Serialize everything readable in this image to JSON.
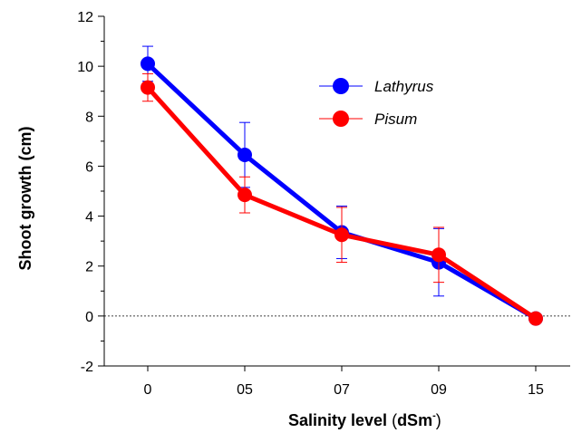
{
  "chart_data": {
    "type": "line",
    "categories": [
      "0",
      "05",
      "07",
      "09",
      "15"
    ],
    "ylabel": "Shoot growth (cm)",
    "xlabel": {
      "prefix": "Salinity level ",
      "paren_open": "(",
      "unit": "dSm",
      "superscript": "-",
      "paren_close": ")"
    },
    "ylim": [
      -2,
      12
    ],
    "yticks": [
      "-2",
      "0",
      "2",
      "4",
      "6",
      "8",
      "10",
      "12"
    ],
    "reference_line_y": 0,
    "grid": false,
    "legend_position": "top-center",
    "series": [
      {
        "name": "Lathyrus",
        "color": "#0000ff",
        "values": [
          10.1,
          6.45,
          3.35,
          2.15,
          -0.1
        ],
        "errors": [
          0.7,
          1.3,
          1.05,
          1.35,
          0.1
        ]
      },
      {
        "name": "Pisum",
        "color": "#ff0000",
        "values": [
          9.15,
          4.85,
          3.25,
          2.45,
          -0.1
        ],
        "errors": [
          0.55,
          0.72,
          1.1,
          1.1,
          0.1
        ]
      }
    ]
  }
}
